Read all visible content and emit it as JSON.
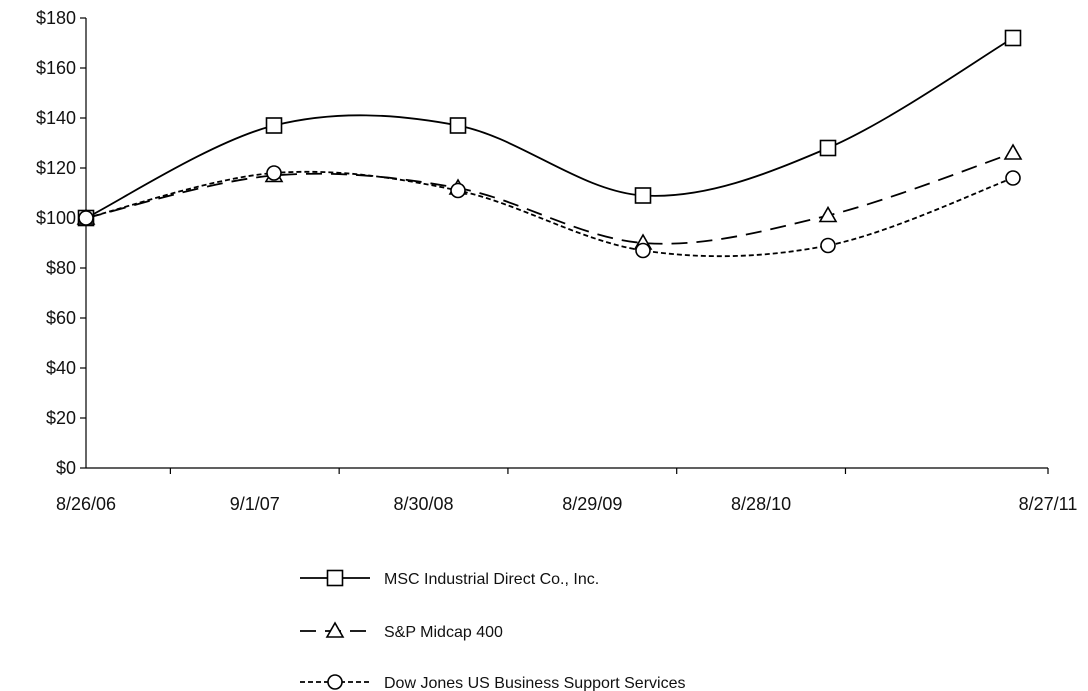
{
  "chart_data": {
    "type": "line",
    "title": "",
    "xlabel": "",
    "ylabel": "",
    "categories": [
      "8/26/06",
      "9/1/07",
      "8/30/08",
      "8/29/09",
      "8/28/10",
      "8/27/11"
    ],
    "y_ticks": [
      "$0",
      "$20",
      "$40",
      "$60",
      "$80",
      "$100",
      "$120",
      "$140",
      "$160",
      "$180"
    ],
    "ylim": [
      0,
      180
    ],
    "grid": false,
    "legend_position": "bottom-center",
    "series": [
      {
        "name": "MSC Industrial Direct Co., Inc.",
        "marker": "square",
        "dash": "solid",
        "values": [
          100,
          137,
          137,
          109,
          128,
          172
        ]
      },
      {
        "name": "S&P Midcap 400",
        "marker": "triangle",
        "dash": "dashed",
        "values": [
          100,
          117,
          112,
          90,
          101,
          126
        ]
      },
      {
        "name": "Dow Jones US Business Support Services",
        "marker": "circle",
        "dash": "dotted",
        "values": [
          100,
          118,
          111,
          87,
          89,
          116
        ]
      }
    ]
  }
}
